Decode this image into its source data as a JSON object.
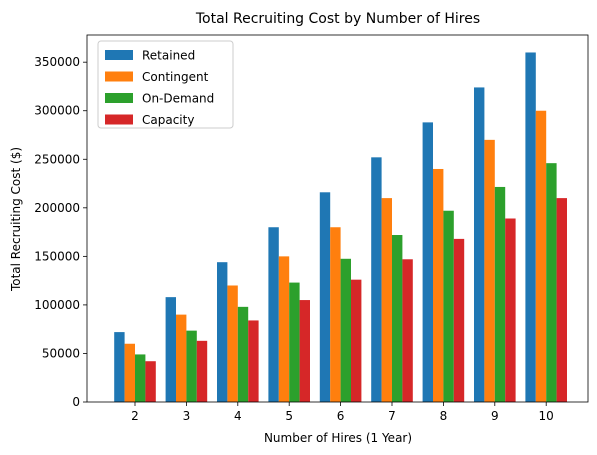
{
  "chart_data": {
    "type": "bar",
    "title": "Total Recruiting Cost by Number of Hires",
    "xlabel": "Number of Hires (1 Year)",
    "ylabel": "Total Recruiting Cost ($)",
    "categories": [
      "2",
      "3",
      "4",
      "5",
      "6",
      "7",
      "8",
      "9",
      "10"
    ],
    "ylim": [
      0,
      378000
    ],
    "yticks": [
      0,
      50000,
      100000,
      150000,
      200000,
      250000,
      300000,
      350000
    ],
    "grid": false,
    "legend_position": "top-left",
    "series": [
      {
        "name": "Retained",
        "color": "#1f77b4",
        "values": [
          72000,
          108000,
          144000,
          180000,
          216000,
          252000,
          288000,
          324000,
          360000
        ]
      },
      {
        "name": "Contingent",
        "color": "#ff7f0e",
        "values": [
          60000,
          90000,
          120000,
          150000,
          180000,
          210000,
          240000,
          270000,
          300000
        ]
      },
      {
        "name": "On-Demand",
        "color": "#2ca02c",
        "values": [
          49000,
          73500,
          98000,
          123000,
          147500,
          172000,
          197000,
          221500,
          246000
        ]
      },
      {
        "name": "Capacity",
        "color": "#d62728",
        "values": [
          42000,
          63000,
          84000,
          105000,
          126000,
          147000,
          168000,
          189000,
          210000
        ]
      }
    ]
  }
}
